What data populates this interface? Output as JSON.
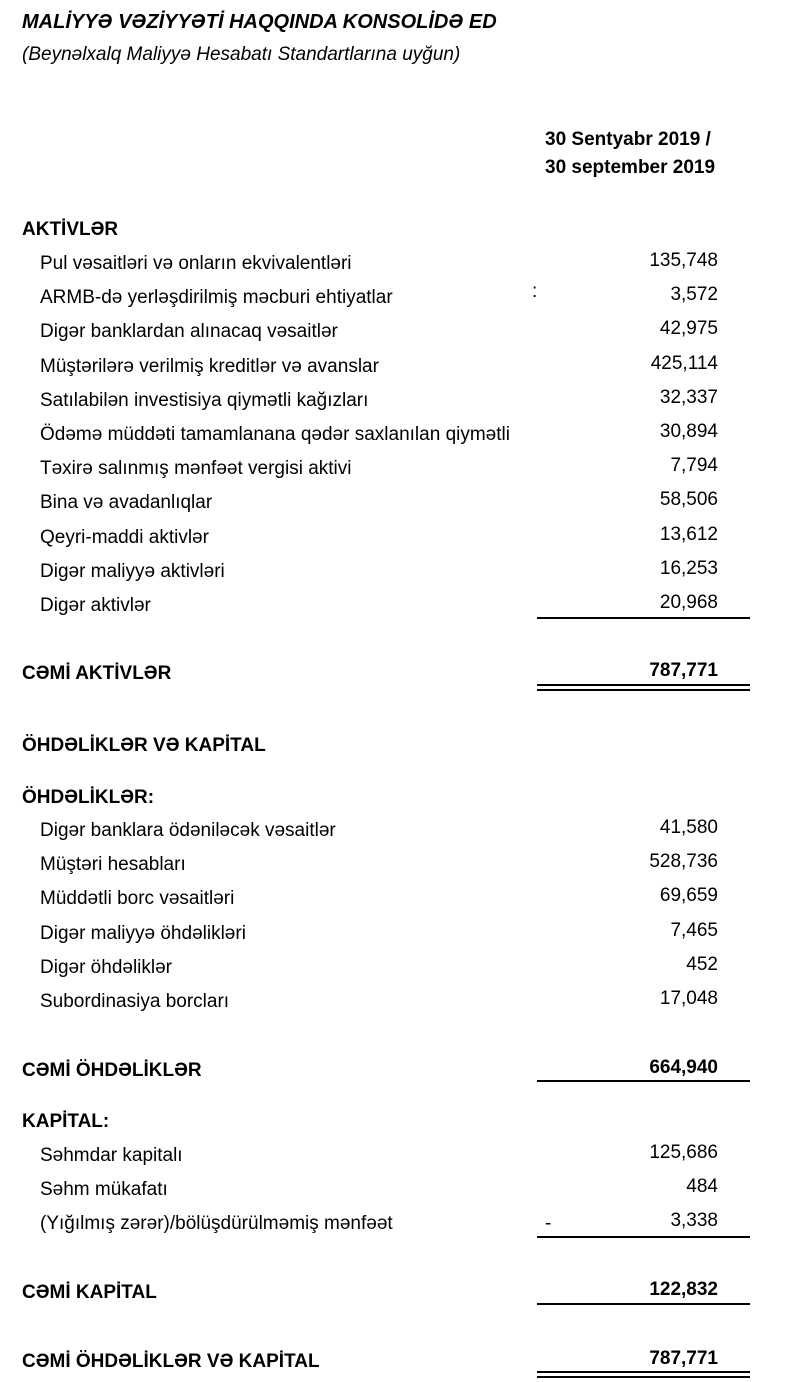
{
  "header": {
    "title": "MALİYYƏ VƏZİYYƏTİ HAQQINDA KONSOLİDƏ ED",
    "subtitle": "(Beynəlxalq Maliyyə Hesabatı Standartlarına uyğun)"
  },
  "column_header": [
    "30 Sentyabr 2019 /",
    "30 september 2019"
  ],
  "assets": {
    "heading": "AKTİVLƏR",
    "rows": [
      {
        "label": "Pul vəsaitləri və onların ekvivalentləri",
        "value": "135,748"
      },
      {
        "label": "ARMB-də yerləşdirilmiş məcburi ehtiyatlar",
        "mark": ":",
        "value": "3,572"
      },
      {
        "label": "Digər banklardan alınacaq vəsaitlər",
        "value": "42,975"
      },
      {
        "label": "Müştərilərə verilmiş kreditlər və avanslar",
        "value": "425,114"
      },
      {
        "label": "Satılabilən investisiya qiymətli kağızları",
        "value": "32,337"
      },
      {
        "label": "Ödəmə müddəti tamamlanana qədər saxlanılan qiymətli",
        "value": "30,894"
      },
      {
        "label": "Təxirə salınmış mənfəət vergisi aktivi",
        "value": "7,794"
      },
      {
        "label": "Bina və avadanlıqlar",
        "value": "58,506"
      },
      {
        "label": "Qeyri-maddi aktivlər",
        "value": "13,612"
      },
      {
        "label": "Digər maliyyə aktivləri",
        "value": "16,253"
      },
      {
        "label": "Digər aktivlər",
        "value": "20,968"
      }
    ],
    "total": {
      "label": "CƏMİ AKTİVLƏR",
      "value": "787,771"
    }
  },
  "liabilities_and_equity": {
    "heading": "ÖHDƏLİKLƏR VƏ KAPİTAL",
    "liabilities": {
      "heading": "ÖHDƏLİKLƏR:",
      "rows": [
        {
          "label": "Digər banklara ödəniləcək vəsaitlər",
          "value": "41,580"
        },
        {
          "label": "Müştəri hesabları",
          "value": "528,736"
        },
        {
          "label": "Müddətli borc vəsaitləri",
          "value": "69,659"
        },
        {
          "label": "Digər maliyyə öhdəlikləri",
          "value": "7,465"
        },
        {
          "label": "Digər öhdəliklər",
          "value": "452"
        },
        {
          "label": "Subordinasiya borcları",
          "value": "17,048"
        }
      ],
      "total": {
        "label": "CƏMİ ÖHDƏLİKLƏR",
        "value": "664,940"
      }
    },
    "equity": {
      "heading": "KAPİTAL:",
      "rows": [
        {
          "label": "Səhmdar kapitalı",
          "value": "125,686"
        },
        {
          "label": "Səhm mükafatı",
          "value": "484"
        },
        {
          "label": "(Yığılmış zərər)/bölüşdürülməmiş mənfəət",
          "sign": "-",
          "value": "3,338"
        }
      ],
      "total": {
        "label": "CƏMİ KAPİTAL",
        "value": "122,832"
      }
    },
    "total": {
      "label": "CƏMİ ÖHDƏLİKLƏR VƏ KAPİTAL",
      "value": "787,771"
    }
  }
}
